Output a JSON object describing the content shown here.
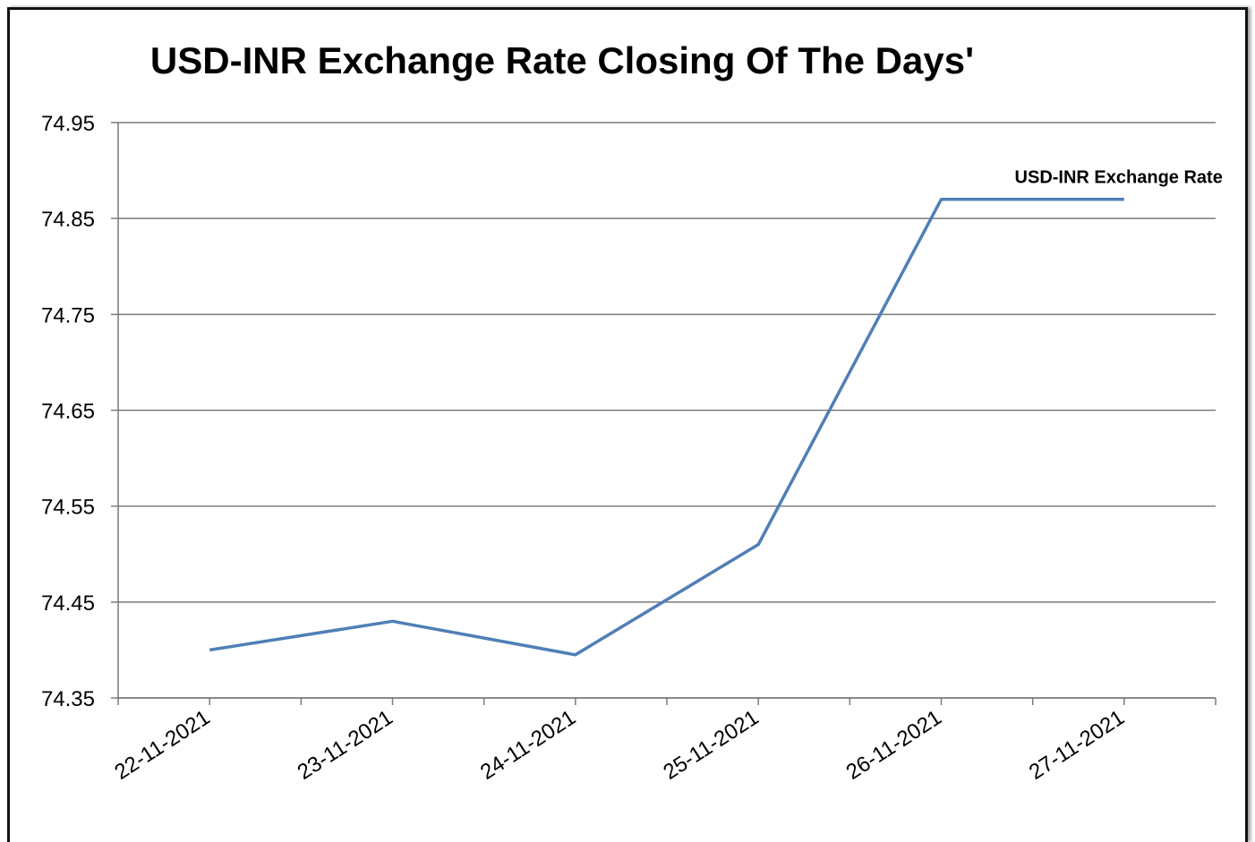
{
  "chart_data": {
    "type": "line",
    "title": "USD-INR Exchange Rate Closing Of The Days'",
    "xlabel": "",
    "ylabel": "",
    "categories": [
      "22-11-2021",
      "23-11-2021",
      "24-11-2021",
      "25-11-2021",
      "26-11-2021",
      "27-11-2021"
    ],
    "ylim": [
      74.35,
      74.95
    ],
    "yticks": [
      "74.95",
      "74.85",
      "74.75",
      "74.65",
      "74.55",
      "74.45",
      "74.35"
    ],
    "grid": true,
    "legend": "end-of-line label",
    "series": [
      {
        "name": "USD-INR Exchange Rate",
        "color": "#4f7fb6",
        "values": [
          74.4,
          74.43,
          74.395,
          74.51,
          74.87,
          74.87
        ]
      }
    ]
  }
}
